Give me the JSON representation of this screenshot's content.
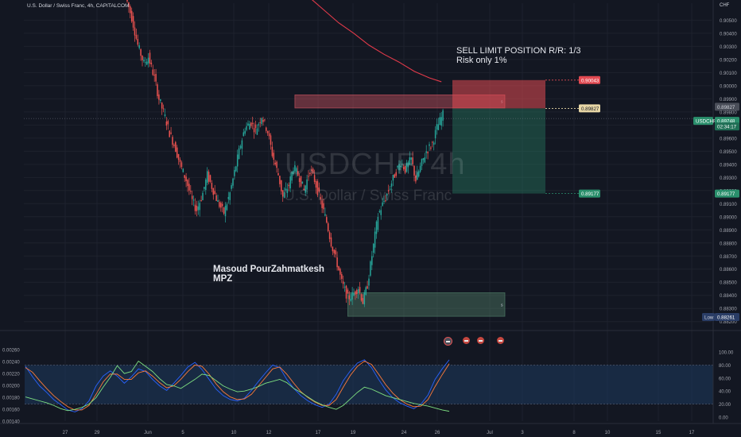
{
  "header": {
    "symbol_line": "U.S. Dollar / Swiss Franc, 4h, CAPITALCOM",
    "currency": "CHF"
  },
  "watermark": {
    "ticker": "USDCHF, 4h",
    "name": "U.S. Dollar / Swiss Franc"
  },
  "annotations": {
    "sell_title": "SELL LIMIT POSITION R/R: 1/3",
    "sell_risk": "Risk only 1%",
    "author": "Masoud PourZahmatkesh",
    "author_short": "MPZ"
  },
  "colors": {
    "bg": "#131722",
    "up": "#26a69a",
    "down": "#ef5350",
    "ma": "#e23a4a",
    "stoch_k": "#2962ff",
    "stoch_d": "#ff7b3a",
    "rsi": "#7ee081",
    "supply": "#c7535f",
    "demand": "#4f7d66",
    "stop": "#e24a52",
    "target": "#2a8f6c"
  },
  "chart_data": [
    {
      "type": "candlestick",
      "title": "U.S. Dollar / Swiss Franc, 4h, CAPITALCOM",
      "ylim": [
        0.8818,
        0.9063
      ],
      "y_ticks": [
        "0.90500",
        "0.90400",
        "0.90300",
        "0.90200",
        "0.90100",
        "0.90000",
        "0.89900",
        "0.89800",
        "0.89700",
        "0.89600",
        "0.89500",
        "0.89400",
        "0.89300",
        "0.89200",
        "0.89100",
        "0.89000",
        "0.88900",
        "0.88800",
        "0.88700",
        "0.88600",
        "0.88500",
        "0.88400",
        "0.88300",
        "0.88200"
      ],
      "x_ticks": [
        "27",
        "29",
        "Jun",
        "5",
        "10",
        "12",
        "17",
        "19",
        "24",
        "26",
        "Jul",
        "3",
        "8",
        "10",
        "15",
        "17"
      ],
      "path_points": [
        [
          0,
          0.9068
        ],
        [
          4,
          0.9052
        ],
        [
          8,
          0.9031
        ],
        [
          12,
          0.9017
        ],
        [
          15,
          0.9022
        ],
        [
          19,
          0.9006
        ],
        [
          22,
          0.899
        ],
        [
          26,
          0.8976
        ],
        [
          29,
          0.8964
        ],
        [
          33,
          0.8952
        ],
        [
          36,
          0.894
        ],
        [
          40,
          0.8928
        ],
        [
          44,
          0.8912
        ],
        [
          47,
          0.8905
        ],
        [
          51,
          0.8918
        ],
        [
          54,
          0.8932
        ],
        [
          58,
          0.892
        ],
        [
          61,
          0.8911
        ],
        [
          65,
          0.8903
        ],
        [
          69,
          0.8918
        ],
        [
          72,
          0.8934
        ],
        [
          76,
          0.8955
        ],
        [
          79,
          0.8968
        ],
        [
          83,
          0.8972
        ],
        [
          86,
          0.8966
        ],
        [
          90,
          0.8977
        ],
        [
          94,
          0.8965
        ],
        [
          97,
          0.8948
        ],
        [
          101,
          0.8932
        ],
        [
          104,
          0.8915
        ],
        [
          108,
          0.8924
        ],
        [
          111,
          0.8938
        ],
        [
          115,
          0.893
        ],
        [
          118,
          0.892
        ],
        [
          122,
          0.8936
        ],
        [
          125,
          0.8928
        ],
        [
          129,
          0.8912
        ],
        [
          133,
          0.8896
        ],
        [
          136,
          0.888
        ],
        [
          140,
          0.8864
        ],
        [
          143,
          0.885
        ],
        [
          147,
          0.8838
        ],
        [
          150,
          0.884
        ],
        [
          154,
          0.8846
        ],
        [
          157,
          0.8835
        ],
        [
          160,
          0.8848
        ],
        [
          164,
          0.8878
        ],
        [
          167,
          0.8901
        ],
        [
          171,
          0.8912
        ],
        [
          174,
          0.892
        ],
        [
          178,
          0.8932
        ],
        [
          182,
          0.8942
        ],
        [
          185,
          0.8936
        ],
        [
          189,
          0.8944
        ],
        [
          192,
          0.8928
        ],
        [
          196,
          0.8941
        ],
        [
          199,
          0.895
        ],
        [
          203,
          0.8956
        ],
        [
          206,
          0.8968
        ],
        [
          210,
          0.8978
        ]
      ],
      "moving_average": [
        [
          110,
          0.9075
        ],
        [
          120,
          0.9068
        ],
        [
          130,
          0.9058
        ],
        [
          140,
          0.9048
        ],
        [
          150,
          0.904
        ],
        [
          160,
          0.9031
        ],
        [
          170,
          0.9024
        ],
        [
          180,
          0.9018
        ],
        [
          190,
          0.9011
        ],
        [
          200,
          0.9006
        ],
        [
          208,
          0.9003
        ]
      ],
      "zones": [
        {
          "name": "supply",
          "from": [
            111,
            0.8993
          ],
          "to": [
            250,
            0.8983
          ],
          "label": "s"
        },
        {
          "name": "demand",
          "from": [
            146,
            0.8842
          ],
          "to": [
            250,
            0.8824
          ],
          "label": "s"
        }
      ],
      "position": {
        "type": "sell limit",
        "entry": 0.89827,
        "stop": 0.90043,
        "target": 0.89177,
        "rr": "1/3"
      },
      "price_labels": {
        "stop": "0.90043",
        "entry": "0.89827",
        "target": "0.89177",
        "current_symbol": "USDCHF",
        "current": "0.89748",
        "countdown": "02:34:17",
        "prev_high": "0.89827",
        "low_label": "Low",
        "low": "0.88261",
        "target_axis": "0.89177"
      }
    },
    {
      "type": "line",
      "title": "",
      "y_left_ticks": [
        "0.00260",
        "0.00240",
        "0.00220",
        "0.00200",
        "0.00180",
        "0.00160",
        "0.00140"
      ],
      "y_right_ticks": [
        "100.00",
        "80.00",
        "60.00",
        "40.00",
        "20.00",
        "0.00"
      ],
      "ylim": [
        0,
        100
      ],
      "band": [
        20,
        80
      ],
      "series": [
        {
          "values": [
            78,
            62,
            48,
            38,
            27,
            19,
            11,
            8,
            13,
            25,
            48,
            63,
            71,
            63,
            52,
            62,
            74,
            70,
            58,
            48,
            41,
            52,
            64,
            77,
            84,
            73,
            58,
            43,
            33,
            27,
            25,
            29,
            41,
            55,
            68,
            80,
            76,
            58,
            44,
            33,
            25,
            19,
            15,
            20,
            35,
            56,
            71,
            83,
            88,
            76,
            58,
            42,
            30,
            22,
            17,
            13,
            20,
            34,
            58,
            74,
            88
          ]
        },
        {
          "values": [
            76,
            69,
            56,
            44,
            33,
            24,
            16,
            11,
            11,
            18,
            35,
            54,
            66,
            66,
            58,
            58,
            68,
            71,
            63,
            53,
            45,
            48,
            58,
            70,
            80,
            78,
            66,
            51,
            39,
            31,
            27,
            28,
            35,
            48,
            61,
            74,
            77,
            66,
            52,
            39,
            30,
            23,
            18,
            18,
            27,
            46,
            64,
            78,
            86,
            81,
            66,
            50,
            37,
            27,
            20,
            16,
            17,
            27,
            47,
            65,
            82
          ]
        },
        {
          "values": [
            31,
            28,
            25,
            22,
            18,
            13,
            10,
            12,
            15,
            20,
            30,
            46,
            61,
            79,
            67,
            70,
            86,
            78,
            70,
            59,
            50,
            48,
            44,
            51,
            58,
            66,
            64,
            56,
            48,
            43,
            39,
            40,
            43,
            47,
            52,
            55,
            58,
            53,
            44,
            38,
            31,
            24,
            19,
            15,
            12,
            18,
            28,
            38,
            46,
            43,
            38,
            33,
            30,
            27,
            24,
            21,
            19,
            17,
            14,
            11,
            9
          ]
        }
      ]
    }
  ]
}
